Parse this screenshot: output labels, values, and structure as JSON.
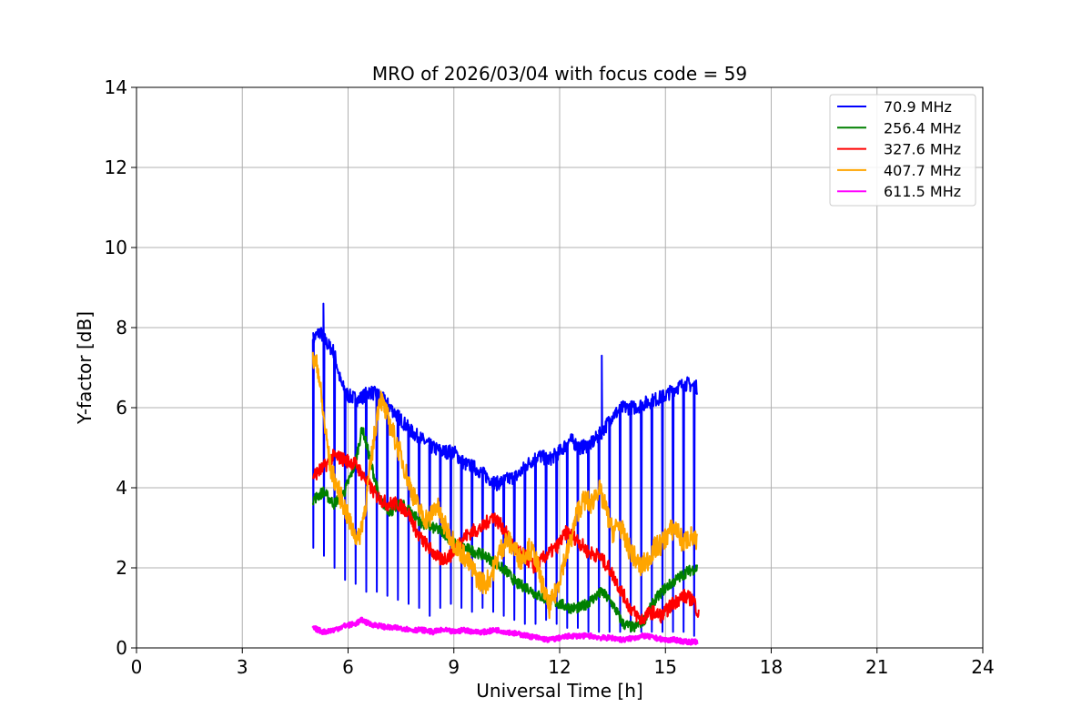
{
  "chart_data": {
    "type": "line",
    "title": "MRO of 2026/03/04 with focus code = 59",
    "xlabel": "Universal Time [h]",
    "ylabel": "Y-factor [dB]",
    "xlim": [
      0,
      24
    ],
    "ylim": [
      0,
      14
    ],
    "xticks": [
      0,
      3,
      6,
      9,
      12,
      15,
      18,
      21,
      24
    ],
    "yticks": [
      0,
      2,
      4,
      6,
      8,
      10,
      12,
      14
    ],
    "grid": true,
    "legend_position": "top-right",
    "series": [
      {
        "name": " 70.9 MHz",
        "color": "#0000ff",
        "points": [
          [
            5.0,
            7.7
          ],
          [
            5.2,
            7.9
          ],
          [
            5.4,
            7.6
          ],
          [
            5.6,
            7.4
          ],
          [
            5.8,
            6.6
          ],
          [
            6.0,
            6.3
          ],
          [
            6.3,
            6.2
          ],
          [
            6.6,
            6.4
          ],
          [
            6.9,
            6.3
          ],
          [
            7.2,
            6.0
          ],
          [
            7.5,
            5.7
          ],
          [
            7.8,
            5.4
          ],
          [
            8.1,
            5.2
          ],
          [
            8.4,
            5.0
          ],
          [
            8.7,
            4.9
          ],
          [
            9.0,
            4.9
          ],
          [
            9.3,
            4.6
          ],
          [
            9.6,
            4.5
          ],
          [
            9.9,
            4.3
          ],
          [
            10.2,
            4.1
          ],
          [
            10.5,
            4.2
          ],
          [
            10.8,
            4.3
          ],
          [
            11.1,
            4.6
          ],
          [
            11.4,
            4.8
          ],
          [
            11.7,
            4.7
          ],
          [
            12.0,
            4.9
          ],
          [
            12.3,
            5.2
          ],
          [
            12.6,
            5.0
          ],
          [
            12.9,
            5.1
          ],
          [
            13.2,
            5.4
          ],
          [
            13.5,
            5.8
          ],
          [
            13.8,
            6.0
          ],
          [
            14.1,
            6.0
          ],
          [
            14.4,
            6.1
          ],
          [
            14.7,
            6.2
          ],
          [
            15.0,
            6.3
          ],
          [
            15.3,
            6.5
          ],
          [
            15.6,
            6.6
          ],
          [
            15.9,
            6.5
          ]
        ],
        "dips": [
          [
            5.0,
            2.5
          ],
          [
            5.3,
            2.3
          ],
          [
            5.6,
            2.0
          ],
          [
            5.9,
            1.7
          ],
          [
            6.2,
            1.6
          ],
          [
            6.5,
            1.4
          ],
          [
            6.8,
            1.4
          ],
          [
            7.1,
            1.3
          ],
          [
            7.4,
            1.2
          ],
          [
            7.7,
            1.1
          ],
          [
            8.0,
            1.0
          ],
          [
            8.3,
            0.8
          ],
          [
            8.6,
            1.0
          ],
          [
            8.9,
            1.1
          ],
          [
            9.2,
            1.0
          ],
          [
            9.5,
            0.9
          ],
          [
            9.8,
            1.0
          ],
          [
            10.1,
            0.9
          ],
          [
            10.4,
            0.8
          ],
          [
            10.7,
            0.7
          ],
          [
            11.0,
            0.6
          ],
          [
            11.3,
            0.6
          ],
          [
            11.6,
            0.7
          ],
          [
            11.9,
            0.6
          ],
          [
            12.2,
            0.5
          ],
          [
            12.5,
            0.5
          ],
          [
            12.8,
            0.4
          ],
          [
            13.1,
            0.4
          ],
          [
            13.4,
            0.4
          ],
          [
            13.7,
            0.4
          ],
          [
            14.0,
            0.4
          ],
          [
            14.3,
            0.4
          ],
          [
            14.6,
            0.4
          ],
          [
            14.9,
            0.4
          ],
          [
            15.2,
            0.4
          ],
          [
            15.5,
            0.4
          ],
          [
            15.8,
            0.3
          ]
        ],
        "spikes": [
          [
            5.3,
            8.6
          ],
          [
            13.2,
            7.3
          ]
        ]
      },
      {
        "name": "256.4 MHz",
        "color": "#008000",
        "points": [
          [
            5.0,
            3.7
          ],
          [
            5.3,
            3.9
          ],
          [
            5.6,
            3.6
          ],
          [
            5.9,
            3.9
          ],
          [
            6.2,
            4.6
          ],
          [
            6.4,
            5.5
          ],
          [
            6.6,
            4.8
          ],
          [
            6.9,
            3.7
          ],
          [
            7.2,
            3.4
          ],
          [
            7.5,
            3.6
          ],
          [
            7.8,
            3.4
          ],
          [
            8.1,
            3.1
          ],
          [
            8.4,
            3.0
          ],
          [
            8.7,
            2.9
          ],
          [
            9.0,
            2.6
          ],
          [
            9.3,
            2.5
          ],
          [
            9.6,
            2.4
          ],
          [
            9.9,
            2.3
          ],
          [
            10.2,
            2.1
          ],
          [
            10.5,
            1.9
          ],
          [
            10.8,
            1.6
          ],
          [
            11.1,
            1.5
          ],
          [
            11.4,
            1.3
          ],
          [
            11.7,
            1.2
          ],
          [
            12.0,
            1.1
          ],
          [
            12.3,
            1.0
          ],
          [
            12.6,
            1.0
          ],
          [
            12.9,
            1.2
          ],
          [
            13.2,
            1.4
          ],
          [
            13.5,
            1.1
          ],
          [
            13.8,
            0.6
          ],
          [
            14.1,
            0.5
          ],
          [
            14.4,
            0.7
          ],
          [
            14.7,
            1.2
          ],
          [
            15.0,
            1.5
          ],
          [
            15.3,
            1.7
          ],
          [
            15.6,
            1.9
          ],
          [
            15.9,
            2.0
          ]
        ]
      },
      {
        "name": "327.6 MHz",
        "color": "#ff0000",
        "points": [
          [
            5.0,
            4.3
          ],
          [
            5.3,
            4.5
          ],
          [
            5.6,
            4.8
          ],
          [
            5.9,
            4.7
          ],
          [
            6.2,
            4.6
          ],
          [
            6.5,
            4.2
          ],
          [
            6.8,
            3.8
          ],
          [
            7.1,
            3.6
          ],
          [
            7.4,
            3.6
          ],
          [
            7.7,
            3.4
          ],
          [
            8.0,
            2.8
          ],
          [
            8.3,
            2.5
          ],
          [
            8.6,
            2.2
          ],
          [
            8.9,
            2.3
          ],
          [
            9.2,
            2.7
          ],
          [
            9.5,
            2.9
          ],
          [
            9.8,
            3.0
          ],
          [
            10.1,
            3.3
          ],
          [
            10.4,
            3.0
          ],
          [
            10.7,
            2.5
          ],
          [
            11.0,
            2.3
          ],
          [
            11.3,
            2.0
          ],
          [
            11.6,
            2.3
          ],
          [
            11.9,
            2.5
          ],
          [
            12.2,
            2.9
          ],
          [
            12.5,
            2.7
          ],
          [
            12.8,
            2.4
          ],
          [
            13.1,
            2.3
          ],
          [
            13.4,
            2.0
          ],
          [
            13.7,
            1.5
          ],
          [
            14.0,
            1.0
          ],
          [
            14.3,
            0.7
          ],
          [
            14.6,
            0.9
          ],
          [
            14.9,
            0.8
          ],
          [
            15.2,
            1.1
          ],
          [
            15.5,
            1.3
          ],
          [
            15.8,
            1.2
          ],
          [
            15.95,
            0.8
          ]
        ]
      },
      {
        "name": "407.7 MHz",
        "color": "#ffa500",
        "points": [
          [
            5.0,
            7.2
          ],
          [
            5.15,
            7.0
          ],
          [
            5.3,
            5.8
          ],
          [
            5.5,
            4.5
          ],
          [
            5.7,
            4.0
          ],
          [
            5.9,
            3.5
          ],
          [
            6.1,
            3.0
          ],
          [
            6.3,
            2.7
          ],
          [
            6.5,
            3.6
          ],
          [
            6.7,
            5.0
          ],
          [
            6.9,
            6.3
          ],
          [
            7.1,
            5.8
          ],
          [
            7.3,
            5.3
          ],
          [
            7.5,
            4.8
          ],
          [
            7.7,
            4.2
          ],
          [
            7.9,
            3.7
          ],
          [
            8.1,
            3.3
          ],
          [
            8.3,
            3.2
          ],
          [
            8.5,
            3.6
          ],
          [
            8.7,
            3.1
          ],
          [
            8.9,
            2.8
          ],
          [
            9.1,
            2.5
          ],
          [
            9.3,
            2.3
          ],
          [
            9.5,
            2.0
          ],
          [
            9.7,
            1.7
          ],
          [
            9.9,
            1.6
          ],
          [
            10.1,
            1.9
          ],
          [
            10.3,
            2.4
          ],
          [
            10.5,
            2.7
          ],
          [
            10.7,
            2.5
          ],
          [
            10.9,
            2.2
          ],
          [
            11.1,
            2.5
          ],
          [
            11.3,
            2.3
          ],
          [
            11.5,
            1.6
          ],
          [
            11.7,
            1.0
          ],
          [
            11.9,
            1.4
          ],
          [
            12.1,
            2.1
          ],
          [
            12.3,
            2.6
          ],
          [
            12.5,
            3.4
          ],
          [
            12.7,
            3.7
          ],
          [
            12.9,
            3.6
          ],
          [
            13.1,
            4.0
          ],
          [
            13.3,
            3.5
          ],
          [
            13.5,
            2.9
          ],
          [
            13.7,
            3.1
          ],
          [
            13.9,
            2.6
          ],
          [
            14.1,
            2.3
          ],
          [
            14.3,
            2.0
          ],
          [
            14.5,
            2.2
          ],
          [
            14.7,
            2.5
          ],
          [
            14.9,
            2.6
          ],
          [
            15.1,
            2.9
          ],
          [
            15.3,
            3.0
          ],
          [
            15.5,
            2.6
          ],
          [
            15.7,
            2.8
          ],
          [
            15.9,
            2.6
          ]
        ]
      },
      {
        "name": "611.5 MHz",
        "color": "#ff00ff",
        "points": [
          [
            5.0,
            0.5
          ],
          [
            5.3,
            0.4
          ],
          [
            5.6,
            0.45
          ],
          [
            5.9,
            0.55
          ],
          [
            6.2,
            0.6
          ],
          [
            6.4,
            0.7
          ],
          [
            6.6,
            0.6
          ],
          [
            6.9,
            0.55
          ],
          [
            7.2,
            0.5
          ],
          [
            7.5,
            0.5
          ],
          [
            7.8,
            0.45
          ],
          [
            8.1,
            0.45
          ],
          [
            8.4,
            0.4
          ],
          [
            8.7,
            0.45
          ],
          [
            9.0,
            0.4
          ],
          [
            9.3,
            0.45
          ],
          [
            9.6,
            0.4
          ],
          [
            9.9,
            0.4
          ],
          [
            10.2,
            0.45
          ],
          [
            10.5,
            0.4
          ],
          [
            10.8,
            0.35
          ],
          [
            11.1,
            0.3
          ],
          [
            11.4,
            0.25
          ],
          [
            11.7,
            0.2
          ],
          [
            12.0,
            0.25
          ],
          [
            12.3,
            0.3
          ],
          [
            12.6,
            0.3
          ],
          [
            12.9,
            0.3
          ],
          [
            13.2,
            0.25
          ],
          [
            13.5,
            0.25
          ],
          [
            13.8,
            0.2
          ],
          [
            14.1,
            0.25
          ],
          [
            14.4,
            0.3
          ],
          [
            14.7,
            0.25
          ],
          [
            15.0,
            0.2
          ],
          [
            15.3,
            0.2
          ],
          [
            15.6,
            0.15
          ],
          [
            15.9,
            0.15
          ]
        ]
      }
    ]
  }
}
